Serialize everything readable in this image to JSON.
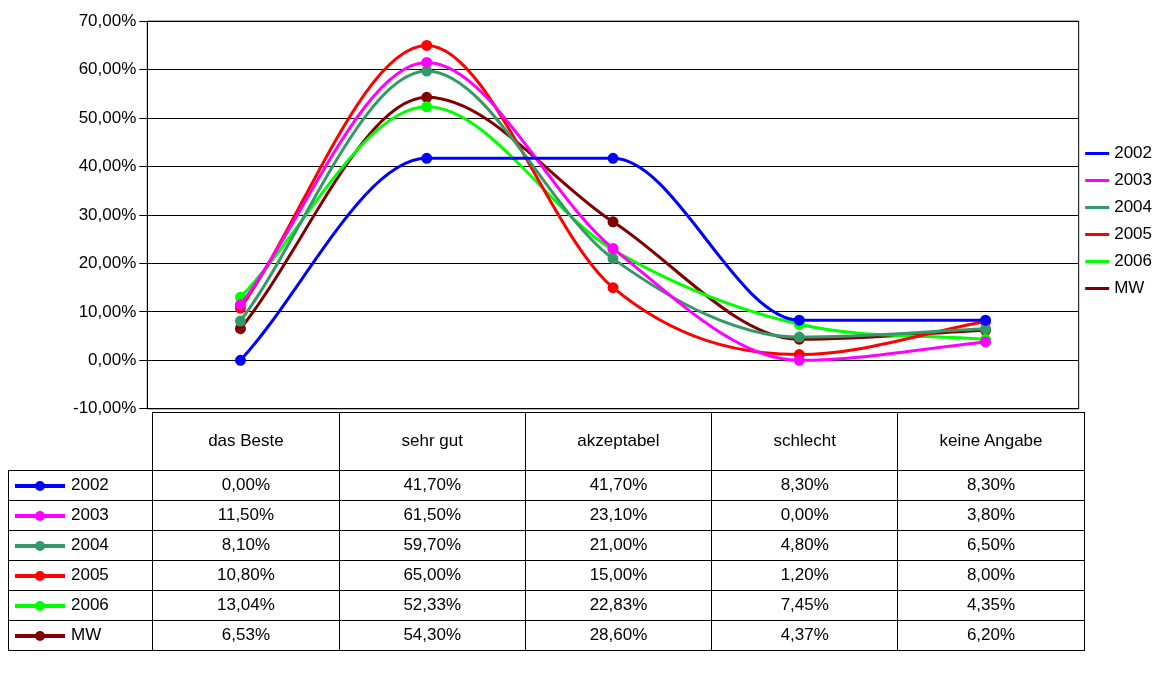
{
  "chart_data": {
    "type": "line",
    "categories": [
      "das Beste",
      "sehr gut",
      "akzeptabel",
      "schlecht",
      "keine Angabe"
    ],
    "series": [
      {
        "name": "2002",
        "color": "#0000ff",
        "values": [
          0,
          41.7,
          41.7,
          8.3,
          8.3
        ],
        "value_labels": [
          "0,00%",
          "41,70%",
          "41,70%",
          "8,30%",
          "8,30%"
        ]
      },
      {
        "name": "2003",
        "color": "#ff00ff",
        "values": [
          11.5,
          61.5,
          23.1,
          0,
          3.8
        ],
        "value_labels": [
          "11,50%",
          "61,50%",
          "23,10%",
          "0,00%",
          "3,80%"
        ]
      },
      {
        "name": "2004",
        "color": "#339966",
        "values": [
          8.1,
          59.7,
          21,
          4.8,
          6.5
        ],
        "value_labels": [
          "8,10%",
          "59,70%",
          "21,00%",
          "4,80%",
          "6,50%"
        ]
      },
      {
        "name": "2005",
        "color": "#ff0000",
        "values": [
          10.8,
          65,
          15,
          1.2,
          8
        ],
        "value_labels": [
          "10,80%",
          "65,00%",
          "15,00%",
          "1,20%",
          "8,00%"
        ]
      },
      {
        "name": "2006",
        "color": "#00ff00",
        "values": [
          13.04,
          52.33,
          22.83,
          7.45,
          4.35
        ],
        "value_labels": [
          "13,04%",
          "52,33%",
          "22,83%",
          "7,45%",
          "4,35%"
        ]
      },
      {
        "name": "MW",
        "color": "#800000",
        "values": [
          6.53,
          54.3,
          28.6,
          4.37,
          6.2
        ],
        "value_labels": [
          "6,53%",
          "54,30%",
          "28,60%",
          "4,37%",
          "6,20%"
        ]
      }
    ],
    "ylim": [
      -10,
      70
    ],
    "yticks": [
      {
        "value": -10,
        "label": "-10,00%"
      },
      {
        "value": 0,
        "label": "0,00%"
      },
      {
        "value": 10,
        "label": "10,00%"
      },
      {
        "value": 20,
        "label": "20,00%"
      },
      {
        "value": 30,
        "label": "30,00%"
      },
      {
        "value": 40,
        "label": "40,00%"
      },
      {
        "value": 50,
        "label": "50,00%"
      },
      {
        "value": 60,
        "label": "60,00%"
      },
      {
        "value": 70,
        "label": "70,00%"
      }
    ],
    "grid": "y",
    "legend": "right",
    "marker": "circle",
    "line_style": "solid"
  }
}
